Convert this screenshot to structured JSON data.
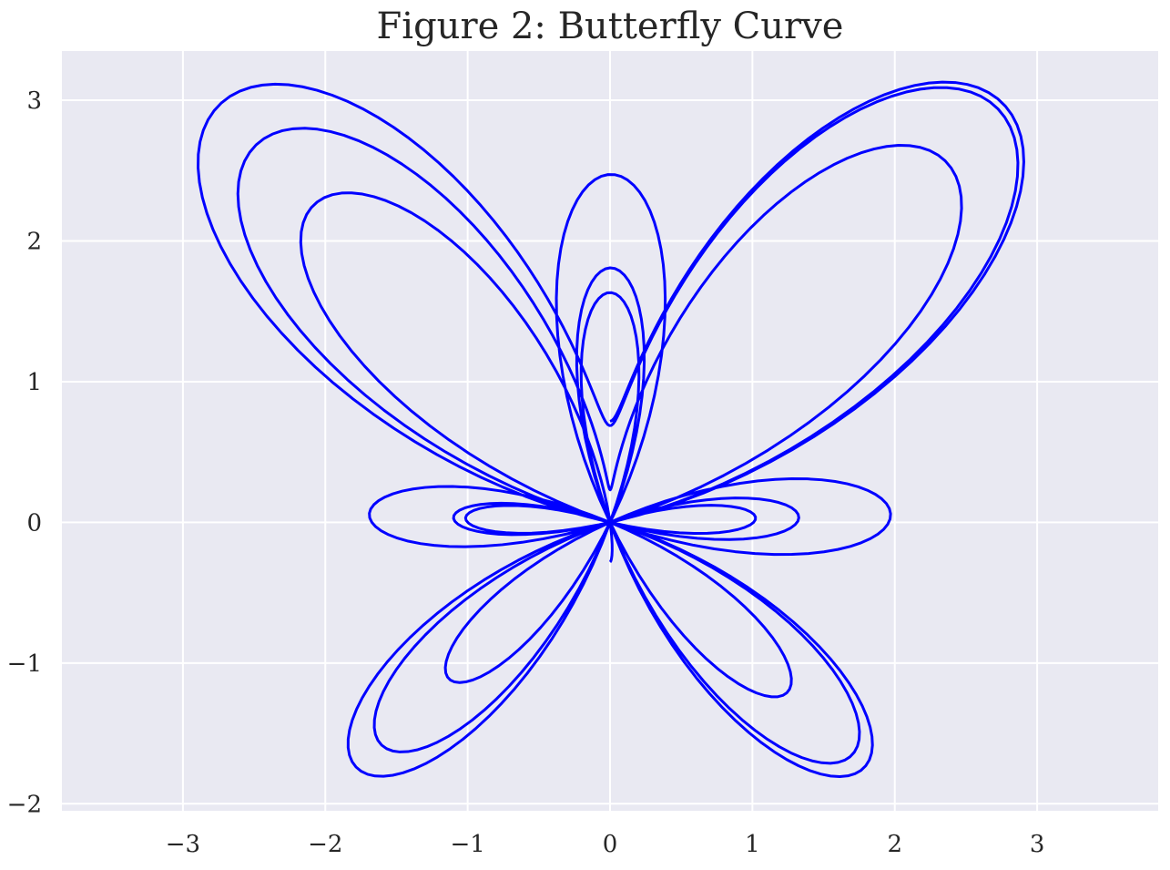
{
  "chart_data": {
    "type": "line",
    "title": "Figure 2: Butterfly Curve",
    "xlabel": "",
    "ylabel": "",
    "xlim": [
      -3.85,
      3.85
    ],
    "ylim": [
      -2.05,
      3.35
    ],
    "x_ticks": [
      -3,
      -2,
      -1,
      0,
      1,
      2,
      3
    ],
    "y_ticks": [
      -2,
      -1,
      0,
      1,
      2,
      3
    ],
    "x_tick_labels": [
      "−3",
      "−2",
      "−1",
      "0",
      "1",
      "2",
      "3"
    ],
    "y_tick_labels": [
      "−2",
      "−1",
      "0",
      "1",
      "2",
      "3"
    ],
    "grid": true,
    "series": [
      {
        "equation_x": "sin(t) * (exp(cos(t)) - 2*cos(4t) - sin(t/12)^5)",
        "equation_y": "cos(t) * (exp(cos(t)) - 2*cos(4t) - sin(t/12)^5)",
        "t_range": [
          0,
          18.85
        ],
        "samples": 1000,
        "color": "#0000ff"
      }
    ],
    "colors": {
      "plot_background": "#e9e9f2",
      "grid": "#ffffff",
      "text": "#262626"
    }
  }
}
